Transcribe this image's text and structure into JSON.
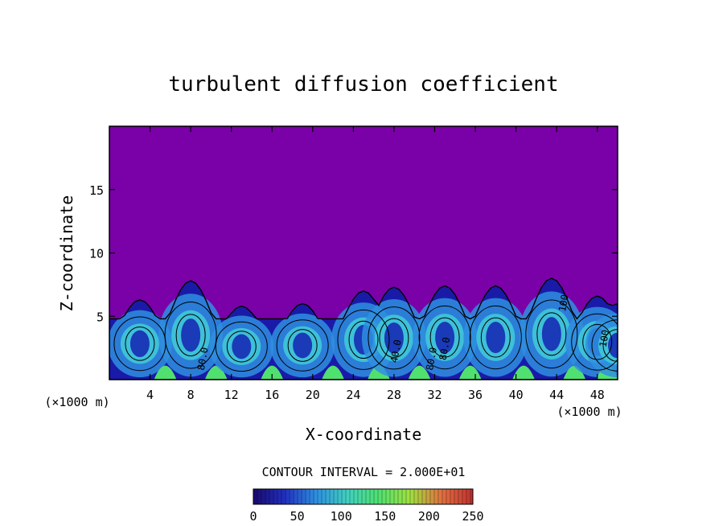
{
  "chart_data": {
    "type": "heatmap",
    "title": "turbulent diffusion coefficient",
    "xlabel": "X-coordinate",
    "ylabel": "Z-coordinate",
    "x_unit": "(×1000 m)",
    "y_unit": "(×1000 m)",
    "xlim": [
      0,
      50
    ],
    "ylim": [
      0,
      20
    ],
    "x_ticks": [
      4,
      8,
      12,
      16,
      20,
      24,
      28,
      32,
      36,
      40,
      44,
      48
    ],
    "y_ticks": [
      5,
      10,
      15
    ],
    "contour_interval_text": "CONTOUR INTERVAL = 2.000E+01",
    "contour_labels": [
      "80.0",
      "40.0",
      "80.0",
      "80.0",
      "100",
      "100"
    ],
    "colorbar": {
      "min": 0,
      "max": 250,
      "ticks": [
        0,
        50,
        100,
        150,
        200,
        250
      ],
      "colors": [
        "#1a0a6b",
        "#2030c0",
        "#2f8fe0",
        "#40d0c0",
        "#50e070",
        "#a0e040",
        "#e07040",
        "#c03030"
      ]
    },
    "background_color": "#7a00a8",
    "eddies": [
      {
        "x": 3.0,
        "top": 6.3
      },
      {
        "x": 8.0,
        "top": 7.8
      },
      {
        "x": 13.0,
        "top": 5.8
      },
      {
        "x": 19.0,
        "top": 6.0
      },
      {
        "x": 25.0,
        "top": 7.0
      },
      {
        "x": 28.0,
        "top": 7.3
      },
      {
        "x": 33.0,
        "top": 7.4
      },
      {
        "x": 38.0,
        "top": 7.4
      },
      {
        "x": 43.5,
        "top": 8.0
      },
      {
        "x": 48.0,
        "top": 6.6
      },
      {
        "x": 50.0,
        "top": 6.0
      }
    ]
  }
}
